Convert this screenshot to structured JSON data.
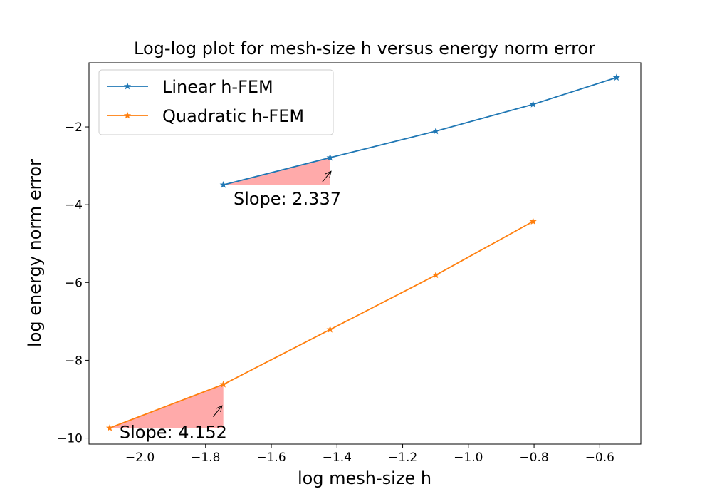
{
  "chart_data": {
    "type": "line",
    "title": "Log-log plot for mesh-size h versus energy norm error",
    "xlabel": "log mesh-size h",
    "ylabel": "log energy norm error",
    "xlim": [
      -2.155,
      -0.475
    ],
    "ylim": [
      -10.155,
      -0.35
    ],
    "xticks": [
      -2.0,
      -1.8,
      -1.6,
      -1.4,
      -1.2,
      -1.0,
      -0.8,
      -0.6
    ],
    "xtick_labels": [
      "−2.0",
      "−1.8",
      "−1.6",
      "−1.4",
      "−1.2",
      "−1.0",
      "−0.8",
      "−0.6"
    ],
    "yticks": [
      -10,
      -8,
      -6,
      -4,
      -2
    ],
    "ytick_labels": [
      "−10",
      "−8",
      "−6",
      "−4",
      "−2"
    ],
    "grid": false,
    "legend_position": "upper-left",
    "series": [
      {
        "name": "Linear h-FEM",
        "color": "#1f77b4",
        "marker": "star",
        "x": [
          -1.746,
          -1.421,
          -1.099,
          -0.803,
          -0.549
        ],
        "y": [
          -3.49,
          -2.79,
          -2.11,
          -1.42,
          -0.73
        ]
      },
      {
        "name": "Quadratic h-FEM",
        "color": "#ff7f0e",
        "marker": "star",
        "x": [
          -2.092,
          -1.746,
          -1.421,
          -1.099,
          -0.803
        ],
        "y": [
          -9.74,
          -8.62,
          -7.21,
          -5.81,
          -4.43
        ]
      }
    ],
    "annotations": [
      {
        "text": "Slope: 2.337",
        "triangle": [
          [
            -1.746,
            -3.49
          ],
          [
            -1.421,
            -3.49
          ],
          [
            -1.421,
            -2.79
          ]
        ],
        "fill": "#ffaaaa",
        "arrow_from": [
          -1.445,
          -3.42
        ],
        "arrow_to": [
          -1.418,
          -3.14
        ],
        "text_at": [
          -1.715,
          -4.0
        ]
      },
      {
        "text": "Slope: 4.152",
        "triangle": [
          [
            -2.092,
            -9.74
          ],
          [
            -1.746,
            -9.74
          ],
          [
            -1.746,
            -8.62
          ]
        ],
        "fill": "#ffaaaa",
        "arrow_from": [
          -1.777,
          -9.45
        ],
        "arrow_to": [
          -1.75,
          -9.17
        ],
        "text_at": [
          -2.062,
          -10.0
        ]
      }
    ]
  }
}
